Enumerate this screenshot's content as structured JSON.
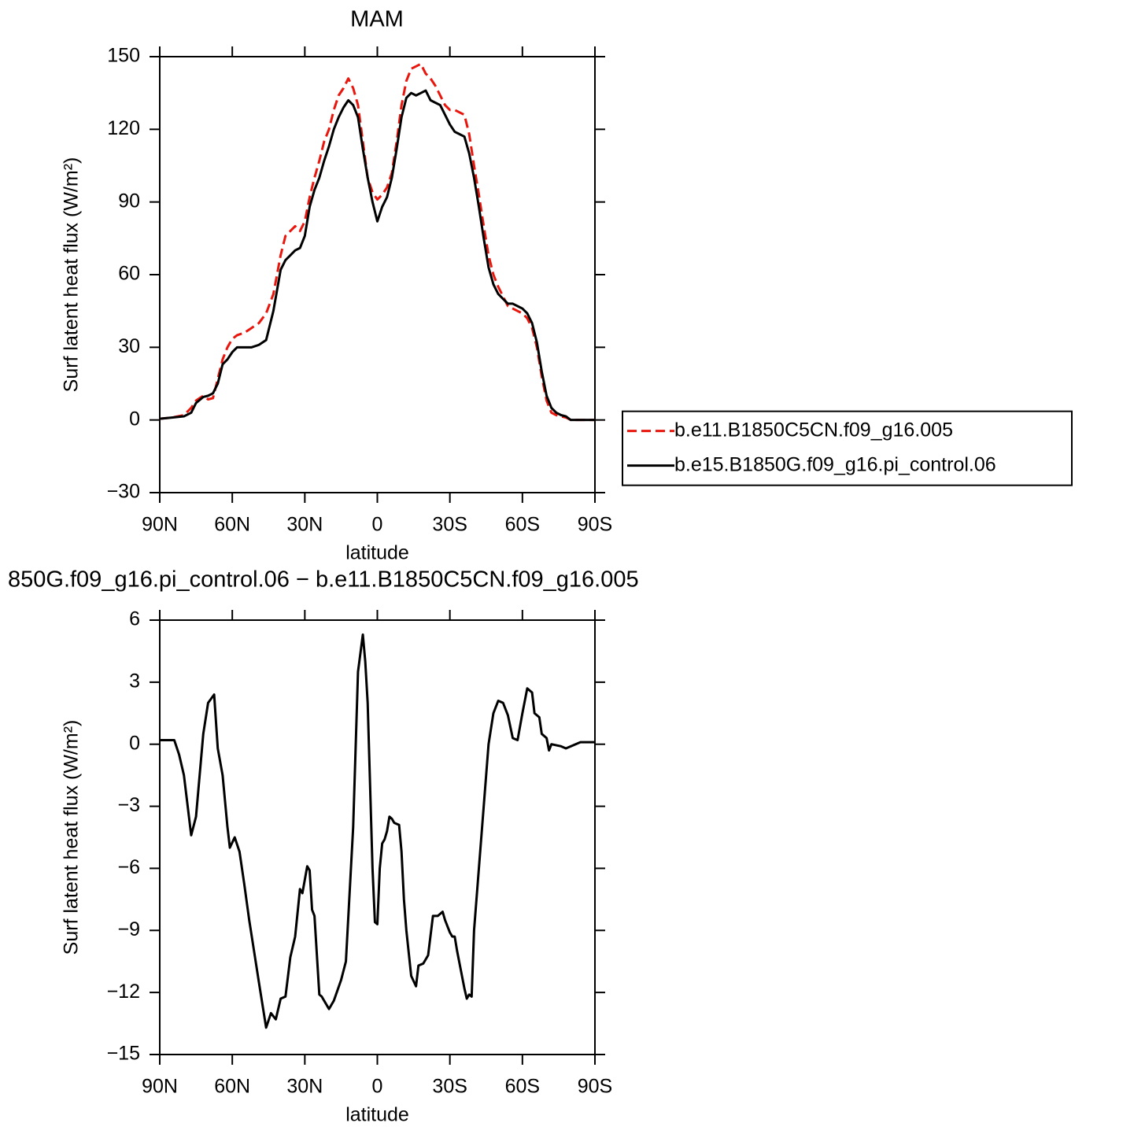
{
  "chart_data": [
    {
      "type": "line",
      "title": "MAM",
      "xlabel": "latitude",
      "ylabel": "Surf latent heat flux (W/m²)",
      "xlim": [
        90,
        -90
      ],
      "ylim": [
        -30,
        150
      ],
      "xticks": [
        {
          "value": 90,
          "label": "90N"
        },
        {
          "value": 60,
          "label": "60N"
        },
        {
          "value": 30,
          "label": "30N"
        },
        0,
        {
          "value": -30,
          "label": "30S"
        },
        {
          "value": -60,
          "label": "60S"
        },
        {
          "value": -90,
          "label": "90S"
        }
      ],
      "yticks": [
        {
          "value": -30,
          "label": "−30"
        },
        0,
        30,
        60,
        90,
        120,
        150
      ],
      "legend": "right",
      "x": [
        90,
        85,
        80,
        77,
        75,
        72,
        70,
        68,
        66,
        64,
        62,
        60,
        58,
        55,
        52,
        49,
        46,
        43,
        40,
        38,
        36,
        34,
        32,
        30,
        28,
        26,
        24,
        22,
        20,
        18,
        16,
        14,
        12,
        10,
        8,
        6,
        4,
        2,
        0,
        -2,
        -4,
        -6,
        -8,
        -10,
        -12,
        -14,
        -16,
        -18,
        -20,
        -22,
        -24,
        -26,
        -28,
        -30,
        -32,
        -34,
        -36,
        -38,
        -40,
        -42,
        -44,
        -46,
        -48,
        -50,
        -52,
        -54,
        -56,
        -58,
        -60,
        -62,
        -64,
        -66,
        -68,
        -70,
        -72,
        -74,
        -76,
        -78,
        -80,
        -85,
        -90
      ],
      "series": [
        {
          "name": "b.e11.B1850C5CN.f09_g16.005",
          "color": "#e8160c",
          "line_style": "dashed",
          "values": [
            0.5,
            1,
            2,
            5,
            8,
            10,
            8.5,
            9,
            17,
            25,
            30,
            33.5,
            35,
            36,
            38,
            40,
            44,
            52,
            68,
            76,
            78,
            80,
            78,
            82,
            92,
            100,
            107,
            115,
            120,
            128,
            134,
            137,
            141,
            137,
            130,
            115,
            100,
            94,
            91,
            93,
            96,
            102,
            115,
            130,
            140,
            145,
            146,
            147,
            143,
            141,
            138,
            134,
            130,
            128,
            128,
            127,
            126,
            118,
            105,
            93,
            80,
            68,
            60,
            55,
            51,
            47,
            46,
            45,
            44,
            42,
            38,
            30,
            18,
            8,
            3,
            2,
            1.5,
            1,
            0,
            0,
            0
          ]
        },
        {
          "name": "b.e15.B1850G.f09_g16.pi_control.06",
          "color": "#000000",
          "line_style": "solid",
          "values": [
            0.5,
            1,
            1.5,
            3,
            7,
            9.5,
            10,
            11,
            15,
            23,
            25,
            28,
            30,
            30,
            30,
            31,
            33,
            45,
            62,
            66,
            68,
            70,
            71,
            76,
            88,
            95,
            100,
            107,
            113,
            120,
            125,
            129,
            132,
            130,
            125,
            112,
            100,
            90,
            82,
            88,
            92,
            100,
            112,
            125,
            133,
            135,
            134,
            135,
            136,
            132,
            131,
            130,
            126,
            122,
            119,
            118,
            117,
            110,
            100,
            88,
            75,
            63,
            56,
            52,
            50,
            48,
            48,
            47,
            46,
            44,
            40,
            32,
            20,
            10,
            5,
            3,
            2,
            1.5,
            0,
            0,
            0
          ]
        }
      ]
    },
    {
      "type": "line",
      "title": "850G.f09_g16.pi_control.06 − b.e11.B1850C5CN.f09_g16.005",
      "xlabel": "latitude",
      "ylabel": "Surf latent heat flux (W/m²)",
      "xlim": [
        90,
        -90
      ],
      "ylim": [
        -15,
        6
      ],
      "xticks": [
        {
          "value": 90,
          "label": "90N"
        },
        {
          "value": 60,
          "label": "60N"
        },
        {
          "value": 30,
          "label": "30N"
        },
        0,
        {
          "value": -30,
          "label": "30S"
        },
        {
          "value": -60,
          "label": "60S"
        },
        {
          "value": -90,
          "label": "90S"
        }
      ],
      "yticks": [
        {
          "value": -15,
          "label": "−15"
        },
        {
          "value": -12,
          "label": "−12"
        },
        {
          "value": -9,
          "label": "−9"
        },
        {
          "value": -6,
          "label": "−6"
        },
        {
          "value": -3,
          "label": "−3"
        },
        0,
        3,
        6
      ],
      "x": [
        90,
        84,
        82,
        80,
        77,
        75,
        72,
        70,
        67.5,
        66,
        64,
        62,
        61,
        59,
        57,
        55,
        53,
        51,
        49,
        46,
        44,
        42,
        40,
        38,
        36,
        34,
        32,
        31,
        29,
        28,
        27,
        26,
        24,
        23,
        20,
        18,
        15,
        13,
        10,
        8,
        6,
        5,
        4,
        2,
        1,
        0,
        -1,
        -2,
        -3,
        -4,
        -5,
        -6,
        -7,
        -9,
        -10,
        -11,
        -12,
        -14,
        -16,
        -17,
        -19,
        -21,
        -23,
        -25,
        -27,
        -28,
        -30,
        -31,
        -32,
        -33,
        -36,
        -37,
        -38,
        -39,
        -40,
        -42,
        -44,
        -46,
        -48,
        -50,
        -52,
        -54,
        -56,
        -58,
        -60,
        -62,
        -64,
        -65,
        -67,
        -68,
        -70,
        -71,
        -72,
        -76,
        -78,
        -80,
        -84,
        -90
      ],
      "series": [
        {
          "color": "#000000",
          "line_style": "solid",
          "values": [
            0.2,
            0.2,
            -0.5,
            -1.5,
            -4.4,
            -3.5,
            0.5,
            2,
            2.4,
            -0.2,
            -1.5,
            -4,
            -5,
            -4.5,
            -5.2,
            -6.8,
            -8.5,
            -10,
            -11.5,
            -13.7,
            -13,
            -13.3,
            -12.3,
            -12.2,
            -10.3,
            -9.3,
            -7,
            -7.2,
            -5.9,
            -6.1,
            -8,
            -8.3,
            -12.1,
            -12.2,
            -12.8,
            -12.4,
            -11.4,
            -10.5,
            -4,
            3.5,
            5.3,
            4,
            2,
            -6,
            -8.6,
            -8.7,
            -6,
            -4.8,
            -4.6,
            -4.2,
            -3.5,
            -3.6,
            -3.8,
            -3.9,
            -5.2,
            -7.5,
            -9,
            -11.2,
            -11.7,
            -10.7,
            -10.6,
            -10.2,
            -8.3,
            -8.3,
            -8.1,
            -8.5,
            -9.1,
            -9.3,
            -9.3,
            -10,
            -11.8,
            -12.3,
            -12.1,
            -12.2,
            -9,
            -6,
            -3,
            0,
            1.5,
            2.1,
            2,
            1.4,
            0.3,
            0.2,
            1.5,
            2.7,
            2.5,
            1.5,
            1.3,
            0.5,
            0.3,
            -0.3,
            0,
            -0.1,
            -0.2,
            -0.1,
            0.1,
            0.1
          ]
        }
      ]
    }
  ]
}
